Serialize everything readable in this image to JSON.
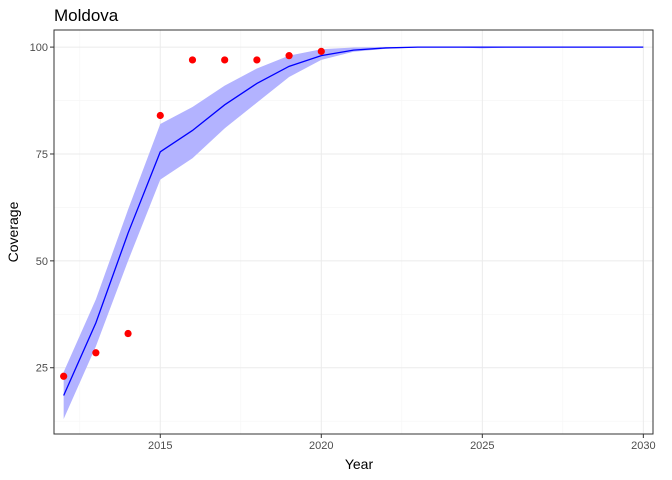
{
  "chart_data": {
    "type": "line",
    "title": "Moldova",
    "xlabel": "Year",
    "ylabel": "Coverage",
    "xlim": [
      2011.7,
      2030.3
    ],
    "ylim": [
      9.5,
      104
    ],
    "x_ticks": [
      2015,
      2020,
      2025,
      2030
    ],
    "y_ticks": [
      25,
      50,
      75,
      100
    ],
    "grid": true,
    "colors": {
      "line": "#0000ff",
      "ribbon": "#b3b3ff",
      "points": "#ff0000"
    },
    "fit": {
      "x": [
        2012,
        2013,
        2014,
        2015,
        2016,
        2017,
        2018,
        2019,
        2020,
        2021,
        2022,
        2023,
        2024,
        2025,
        2026,
        2027,
        2028,
        2029,
        2030
      ],
      "y": [
        18.5,
        35.5,
        56.5,
        75.5,
        80.5,
        86.5,
        91.5,
        95.5,
        98.0,
        99.3,
        99.8,
        100,
        100,
        100,
        100,
        100,
        100,
        100,
        100
      ],
      "lower": [
        13,
        30,
        50,
        69,
        74,
        81,
        87,
        93,
        97,
        98.9,
        99.6,
        99.9,
        100,
        99.7,
        100,
        100,
        100,
        100,
        100
      ],
      "upper": [
        24,
        41,
        62,
        82,
        86,
        91,
        95,
        98,
        99.5,
        99.9,
        100,
        100,
        100,
        100,
        100,
        100,
        100,
        100,
        100
      ]
    },
    "observed": {
      "x": [
        2012,
        2013,
        2014,
        2015,
        2016,
        2017,
        2018,
        2019,
        2020
      ],
      "y": [
        23,
        28.5,
        33,
        84,
        97,
        97,
        97,
        98,
        99
      ]
    }
  }
}
